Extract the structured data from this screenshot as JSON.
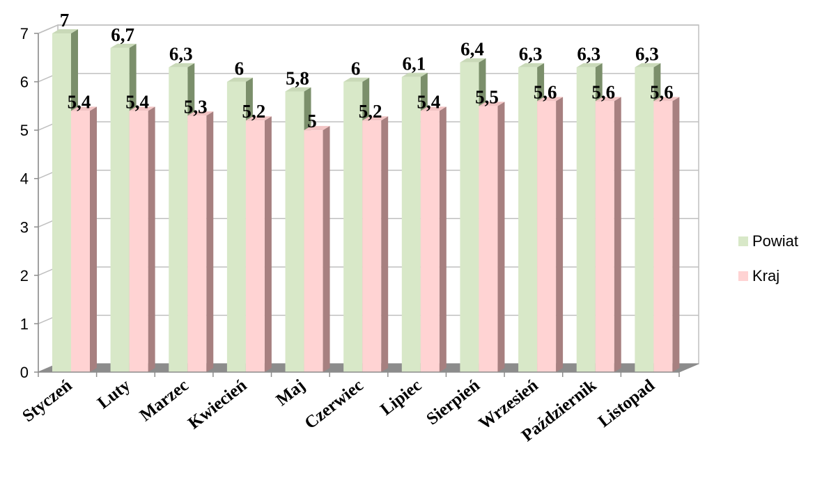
{
  "chart_data": {
    "type": "bar",
    "categories": [
      "Styczeń",
      "Luty",
      "Marzec",
      "Kwiecień",
      "Maj",
      "Czerwiec",
      "Lipiec",
      "Sierpień",
      "Wrzesień",
      "Październik",
      "Listopad"
    ],
    "series": [
      {
        "name": "Powiat",
        "values": [
          7,
          6.7,
          6.3,
          6,
          5.8,
          6,
          6.1,
          6.4,
          6.3,
          6.3,
          6.3
        ],
        "labels": [
          "7",
          "6,7",
          "6,3",
          "6",
          "5,8",
          "6",
          "6,1",
          "6,4",
          "6,3",
          "6,3",
          "6,3"
        ],
        "color": "#d8e8c8"
      },
      {
        "name": "Kraj",
        "values": [
          5.4,
          5.4,
          5.3,
          5.2,
          5,
          5.2,
          5.4,
          5.5,
          5.6,
          5.6,
          5.6
        ],
        "labels": [
          "5,4",
          "5,4",
          "5,3",
          "5,2",
          "5",
          "5,2",
          "5,4",
          "5,5",
          "5,6",
          "5,6",
          "5,6"
        ],
        "color": "#ffd3d3"
      }
    ],
    "yticks": [
      "0",
      "1",
      "2",
      "3",
      "4",
      "5",
      "6",
      "7"
    ],
    "ylim": [
      0,
      7
    ],
    "grid": true,
    "legend_position": "right",
    "style": "3d-clustered-column"
  }
}
